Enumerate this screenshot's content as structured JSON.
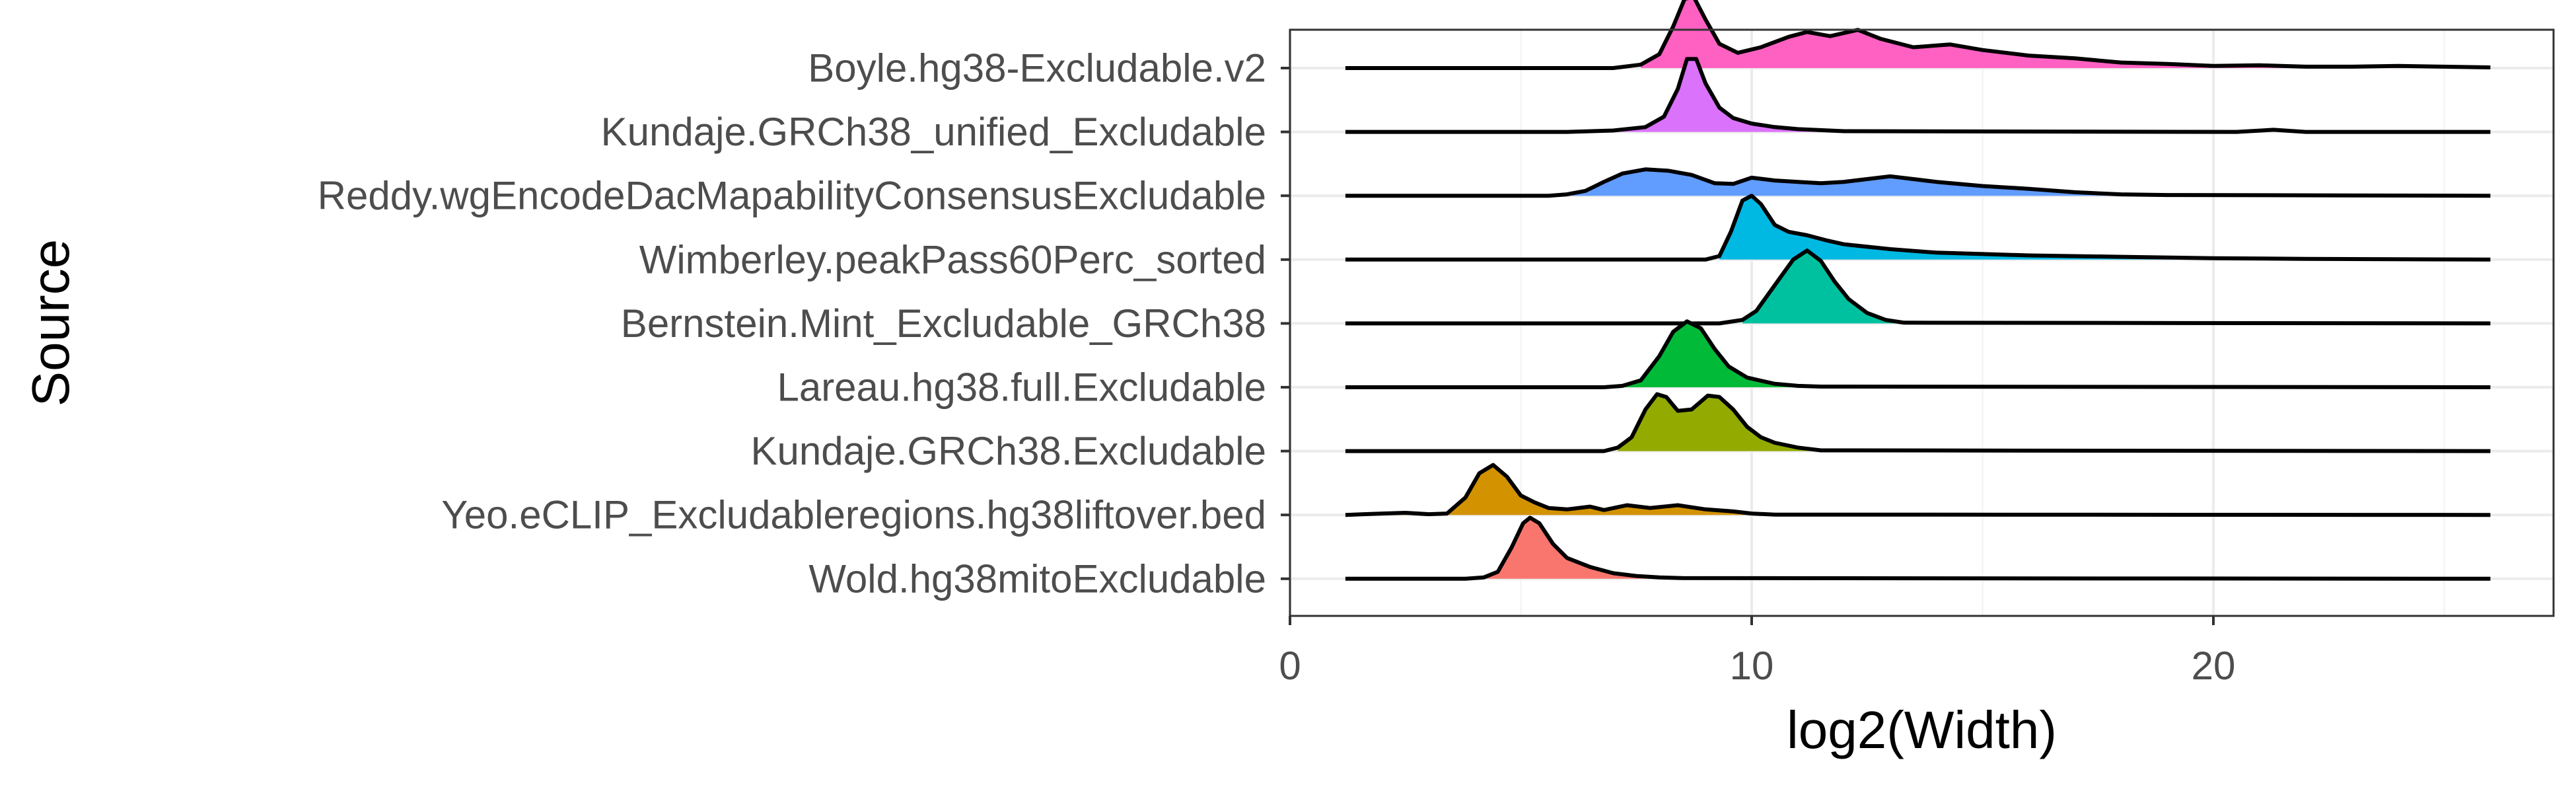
{
  "chart_data": {
    "type": "ridgeline",
    "xlabel": "log2(Width)",
    "ylabel": "Source",
    "xlim": [
      0,
      27
    ],
    "x_ticks": [
      0,
      10,
      20
    ],
    "grid": true,
    "background": "white",
    "series": [
      {
        "name": "Wold.hg38mitoExcludable",
        "color": "#F8766D",
        "points": [
          [
            1.2,
            0
          ],
          [
            3.8,
            0
          ],
          [
            4.2,
            0.02
          ],
          [
            4.5,
            0.1
          ],
          [
            4.8,
            0.45
          ],
          [
            5.05,
            0.8
          ],
          [
            5.2,
            0.88
          ],
          [
            5.4,
            0.8
          ],
          [
            5.7,
            0.5
          ],
          [
            6.0,
            0.3
          ],
          [
            6.5,
            0.17
          ],
          [
            7.0,
            0.08
          ],
          [
            7.5,
            0.04
          ],
          [
            8.0,
            0.02
          ],
          [
            8.5,
            0.01
          ],
          [
            26,
            0
          ]
        ]
      },
      {
        "name": "Yeo.eCLIP_Excludableregions.hg38liftover.bed",
        "color": "#D39200",
        "points": [
          [
            1.2,
            0
          ],
          [
            1.6,
            0.01
          ],
          [
            2.0,
            0.02
          ],
          [
            2.5,
            0.03
          ],
          [
            3.0,
            0.01
          ],
          [
            3.4,
            0.02
          ],
          [
            3.8,
            0.25
          ],
          [
            4.1,
            0.6
          ],
          [
            4.4,
            0.72
          ],
          [
            4.7,
            0.55
          ],
          [
            5.0,
            0.28
          ],
          [
            5.3,
            0.18
          ],
          [
            5.6,
            0.1
          ],
          [
            6.0,
            0.08
          ],
          [
            6.5,
            0.12
          ],
          [
            6.8,
            0.07
          ],
          [
            7.3,
            0.14
          ],
          [
            7.8,
            0.1
          ],
          [
            8.4,
            0.14
          ],
          [
            9.0,
            0.08
          ],
          [
            9.6,
            0.05
          ],
          [
            10.0,
            0.02
          ],
          [
            10.5,
            0.005
          ],
          [
            26,
            0
          ]
        ]
      },
      {
        "name": "Kundaje.GRCh38.Excludable",
        "color": "#93AA00",
        "points": [
          [
            1.2,
            0
          ],
          [
            6.8,
            0
          ],
          [
            7.1,
            0.05
          ],
          [
            7.4,
            0.2
          ],
          [
            7.7,
            0.6
          ],
          [
            7.95,
            0.82
          ],
          [
            8.15,
            0.78
          ],
          [
            8.4,
            0.58
          ],
          [
            8.7,
            0.6
          ],
          [
            9.05,
            0.8
          ],
          [
            9.3,
            0.78
          ],
          [
            9.6,
            0.6
          ],
          [
            9.9,
            0.35
          ],
          [
            10.2,
            0.2
          ],
          [
            10.5,
            0.12
          ],
          [
            11.0,
            0.05
          ],
          [
            11.5,
            0.01
          ],
          [
            26,
            0
          ]
        ]
      },
      {
        "name": "Lareau.hg38.full.Excludable",
        "color": "#00BA38",
        "points": [
          [
            1.2,
            0
          ],
          [
            6.8,
            0
          ],
          [
            7.2,
            0.02
          ],
          [
            7.6,
            0.1
          ],
          [
            8.0,
            0.45
          ],
          [
            8.3,
            0.8
          ],
          [
            8.6,
            0.95
          ],
          [
            8.9,
            0.85
          ],
          [
            9.2,
            0.55
          ],
          [
            9.5,
            0.3
          ],
          [
            9.9,
            0.14
          ],
          [
            10.5,
            0.05
          ],
          [
            11.0,
            0.02
          ],
          [
            11.5,
            0.01
          ],
          [
            26,
            0
          ]
        ]
      },
      {
        "name": "Bernstein.Mint_Excludable_GRCh38",
        "color": "#00C19F",
        "points": [
          [
            1.2,
            0
          ],
          [
            9.3,
            0
          ],
          [
            9.8,
            0.05
          ],
          [
            10.1,
            0.18
          ],
          [
            10.5,
            0.55
          ],
          [
            10.9,
            0.92
          ],
          [
            11.2,
            1.05
          ],
          [
            11.5,
            0.9
          ],
          [
            11.8,
            0.6
          ],
          [
            12.1,
            0.35
          ],
          [
            12.5,
            0.15
          ],
          [
            12.9,
            0.05
          ],
          [
            13.3,
            0.01
          ],
          [
            26,
            0
          ]
        ]
      },
      {
        "name": "Wimberley.peakPass60Perc_sorted",
        "color": "#00B9E3",
        "points": [
          [
            1.2,
            0
          ],
          [
            9.0,
            0
          ],
          [
            9.3,
            0.05
          ],
          [
            9.55,
            0.4
          ],
          [
            9.8,
            0.85
          ],
          [
            10.0,
            0.92
          ],
          [
            10.2,
            0.8
          ],
          [
            10.5,
            0.5
          ],
          [
            10.8,
            0.4
          ],
          [
            11.2,
            0.35
          ],
          [
            11.6,
            0.28
          ],
          [
            12.0,
            0.22
          ],
          [
            13.0,
            0.15
          ],
          [
            14.0,
            0.1
          ],
          [
            15.0,
            0.08
          ],
          [
            16.0,
            0.06
          ],
          [
            18.0,
            0.04
          ],
          [
            20.0,
            0.02
          ],
          [
            22.0,
            0.01
          ],
          [
            26,
            0
          ]
        ]
      },
      {
        "name": "Reddy.wgEncodeDacMapabilityConsensusExcludable",
        "color": "#619CFF",
        "points": [
          [
            1.2,
            0
          ],
          [
            5.6,
            0
          ],
          [
            6.0,
            0.02
          ],
          [
            6.4,
            0.07
          ],
          [
            6.8,
            0.2
          ],
          [
            7.2,
            0.32
          ],
          [
            7.7,
            0.38
          ],
          [
            8.2,
            0.36
          ],
          [
            8.7,
            0.3
          ],
          [
            9.2,
            0.18
          ],
          [
            9.6,
            0.17
          ],
          [
            10.0,
            0.26
          ],
          [
            10.5,
            0.22
          ],
          [
            11.0,
            0.2
          ],
          [
            11.5,
            0.18
          ],
          [
            12.0,
            0.2
          ],
          [
            12.5,
            0.24
          ],
          [
            13.0,
            0.28
          ],
          [
            13.5,
            0.24
          ],
          [
            14.0,
            0.2
          ],
          [
            15.0,
            0.14
          ],
          [
            16.0,
            0.1
          ],
          [
            17.0,
            0.05
          ],
          [
            18.0,
            0.02
          ],
          [
            19.0,
            0.01
          ],
          [
            26,
            0
          ]
        ]
      },
      {
        "name": "Kundaje.GRCh38_unified_Excludable",
        "color": "#DB72FB",
        "points": [
          [
            1.2,
            0
          ],
          [
            6.0,
            0
          ],
          [
            7.0,
            0.02
          ],
          [
            7.7,
            0.07
          ],
          [
            8.1,
            0.22
          ],
          [
            8.4,
            0.62
          ],
          [
            8.6,
            1.05
          ],
          [
            8.8,
            1.05
          ],
          [
            9.0,
            0.7
          ],
          [
            9.3,
            0.35
          ],
          [
            9.6,
            0.2
          ],
          [
            10.0,
            0.12
          ],
          [
            10.5,
            0.07
          ],
          [
            11.0,
            0.04
          ],
          [
            12.0,
            0.01
          ],
          [
            20.5,
            0
          ],
          [
            21.3,
            0.03
          ],
          [
            22.0,
            0
          ],
          [
            26,
            0
          ]
        ]
      },
      {
        "name": "Boyle.hg38-Excludable.v2",
        "color": "#FF61C3",
        "points": [
          [
            1.2,
            0
          ],
          [
            7.0,
            0
          ],
          [
            7.6,
            0.05
          ],
          [
            8.0,
            0.2
          ],
          [
            8.3,
            0.6
          ],
          [
            8.55,
            1.0
          ],
          [
            8.75,
            1.02
          ],
          [
            9.0,
            0.7
          ],
          [
            9.3,
            0.35
          ],
          [
            9.7,
            0.22
          ],
          [
            10.2,
            0.3
          ],
          [
            10.8,
            0.45
          ],
          [
            11.2,
            0.52
          ],
          [
            11.7,
            0.46
          ],
          [
            12.3,
            0.55
          ],
          [
            12.8,
            0.42
          ],
          [
            13.5,
            0.3
          ],
          [
            14.3,
            0.34
          ],
          [
            15.0,
            0.26
          ],
          [
            16.0,
            0.18
          ],
          [
            17.0,
            0.14
          ],
          [
            18.0,
            0.08
          ],
          [
            19.0,
            0.06
          ],
          [
            20.0,
            0.03
          ],
          [
            21.0,
            0.04
          ],
          [
            22.0,
            0.02
          ],
          [
            23.0,
            0.02
          ],
          [
            24.0,
            0.03
          ],
          [
            25.0,
            0.02
          ],
          [
            26,
            0.01
          ]
        ]
      }
    ]
  }
}
